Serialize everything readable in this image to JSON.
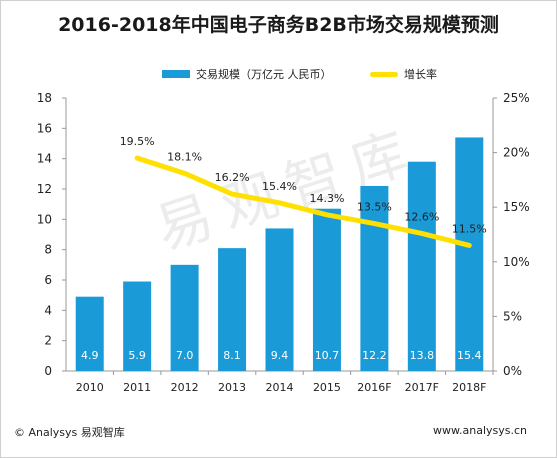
{
  "title": "2016-2018年中国电子商务B2B市场交易规模预测",
  "footer": {
    "source": "© Analysys 易观智库",
    "website": "www.analysys.cn"
  },
  "watermark": "易观智库",
  "colors": {
    "bar": "#1a9ad6",
    "line": "#ffe000",
    "bar_label": "#ffffff",
    "text": "#222222"
  },
  "chart_data": {
    "type": "bar",
    "categories": [
      "2010",
      "2011",
      "2012",
      "2013",
      "2014",
      "2015",
      "2016F",
      "2017F",
      "2018F"
    ],
    "series": [
      {
        "name": "交易规模（万亿元 人民币）",
        "type": "bar",
        "axis": "left",
        "values": [
          4.9,
          5.9,
          7.0,
          8.1,
          9.4,
          10.7,
          12.2,
          13.8,
          15.4
        ],
        "labels": [
          "4.9",
          "5.9",
          "7.0",
          "8.1",
          "9.4",
          "10.7",
          "12.2",
          "13.8",
          "15.4"
        ]
      },
      {
        "name": "增长率",
        "type": "line",
        "axis": "right",
        "values": [
          null,
          19.5,
          18.1,
          16.2,
          15.4,
          14.3,
          13.5,
          12.6,
          11.5
        ],
        "labels": [
          null,
          "19.5%",
          "18.1%",
          "16.2%",
          "15.4%",
          "14.3%",
          "13.5%",
          "12.6%",
          "11.5%"
        ]
      }
    ],
    "y_left": {
      "min": 0,
      "max": 18,
      "ticks": [
        "0",
        "2",
        "4",
        "6",
        "8",
        "10",
        "12",
        "14",
        "16",
        "18"
      ]
    },
    "y_right": {
      "min": 0,
      "max": 25,
      "ticks": [
        "0%",
        "5%",
        "10%",
        "15%",
        "20%",
        "25%"
      ]
    },
    "legend": "top-center",
    "grid": false
  }
}
